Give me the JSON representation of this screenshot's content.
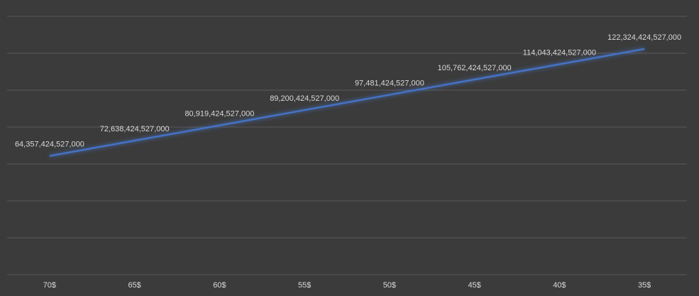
{
  "chart_data": {
    "type": "line",
    "categories": [
      "70$",
      "65$",
      "60$",
      "55$",
      "50$",
      "45$",
      "40$",
      "35$"
    ],
    "values": [
      64357424527000,
      72638424527000,
      80919424527000,
      89200424527000,
      97481424527000,
      105762424527000,
      114043424527000,
      122324424527000
    ],
    "value_labels": [
      "64,357,424,527,000",
      "72,638,424,527,000",
      "80,919,424,527,000",
      "89,200,424,527,000",
      "97,481,424,527,000",
      "105,762,424,527,000",
      "114,043,424,527,000",
      "122,324,424,527,000"
    ],
    "color": "#4472c4",
    "ylim": [
      0,
      140000000000000
    ],
    "yticks": [
      0,
      20000000000000,
      40000000000000,
      60000000000000,
      80000000000000,
      100000000000000,
      120000000000000,
      140000000000000
    ],
    "grid": true
  }
}
